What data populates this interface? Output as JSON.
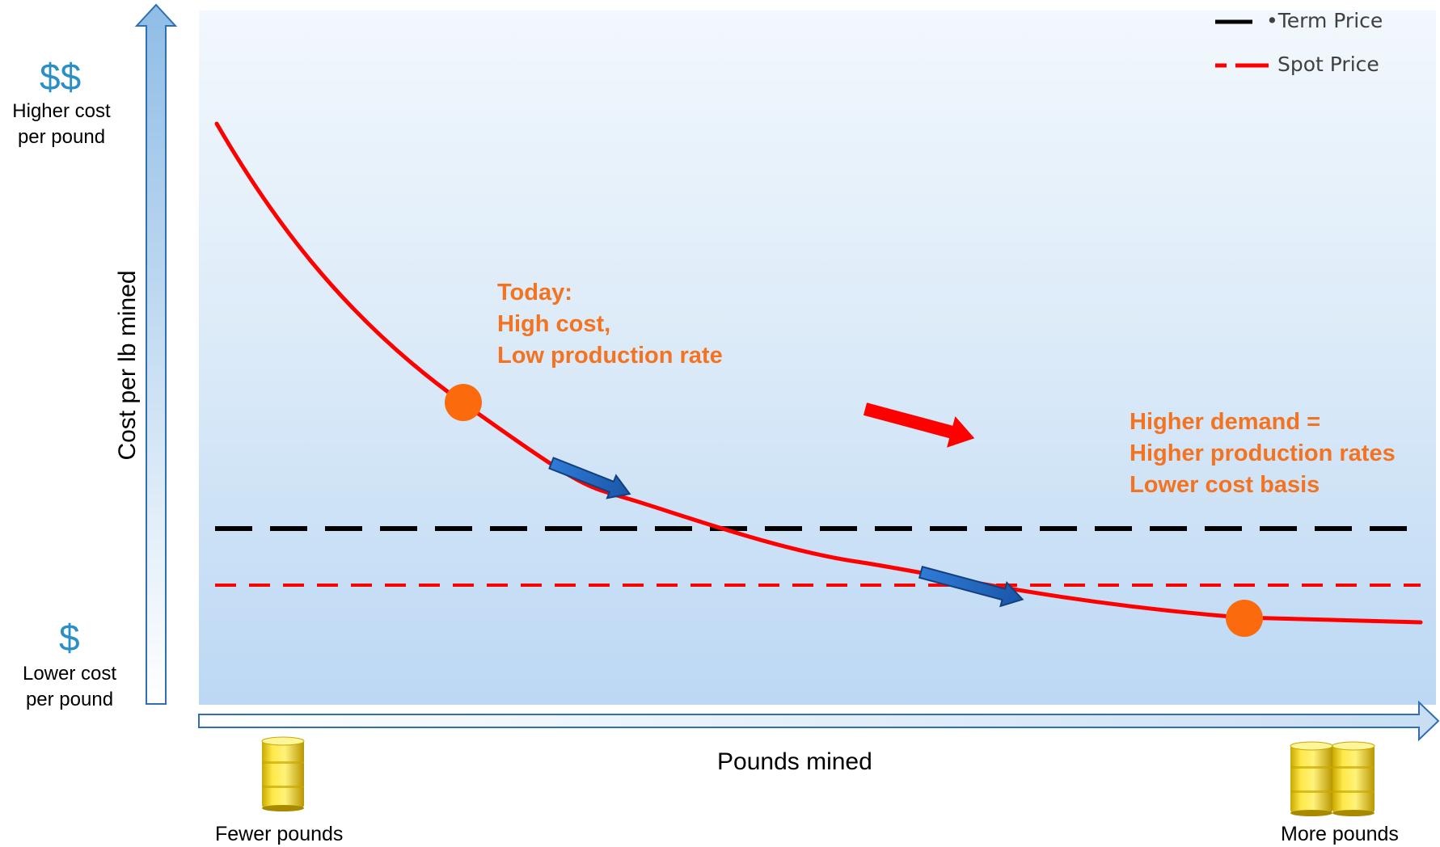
{
  "y_axis": {
    "title": "Cost per lb mined",
    "high_symbol": "$$",
    "high_label_1": "Higher cost",
    "high_label_2": "per pound",
    "low_symbol": "$",
    "low_label_1": "Lower cost",
    "low_label_2": "per pound"
  },
  "x_axis": {
    "title": "Pounds mined",
    "left_label": "Fewer pounds",
    "right_label": "More pounds"
  },
  "legend": {
    "term_price": "•Term Price",
    "spot_price": "Spot Price"
  },
  "annotations": {
    "today_1": "Today:",
    "today_2": "High cost,",
    "today_3": "Low production rate",
    "future_1": "Higher demand =",
    "future_2": "Higher production rates",
    "future_3": "Lower cost basis"
  },
  "colors": {
    "cost_curve": "#ff0000",
    "term_price_line": "#000000",
    "spot_price_line": "#ff0000",
    "marker": "#fb6a0c",
    "annotation_text": "#f47320",
    "dollar_sign": "#2a8fc4",
    "blue_arrow": "#1f5fb4",
    "red_arrow": "#ff0000"
  },
  "icons": {
    "barrel": "yellow-barrel-icon"
  }
}
